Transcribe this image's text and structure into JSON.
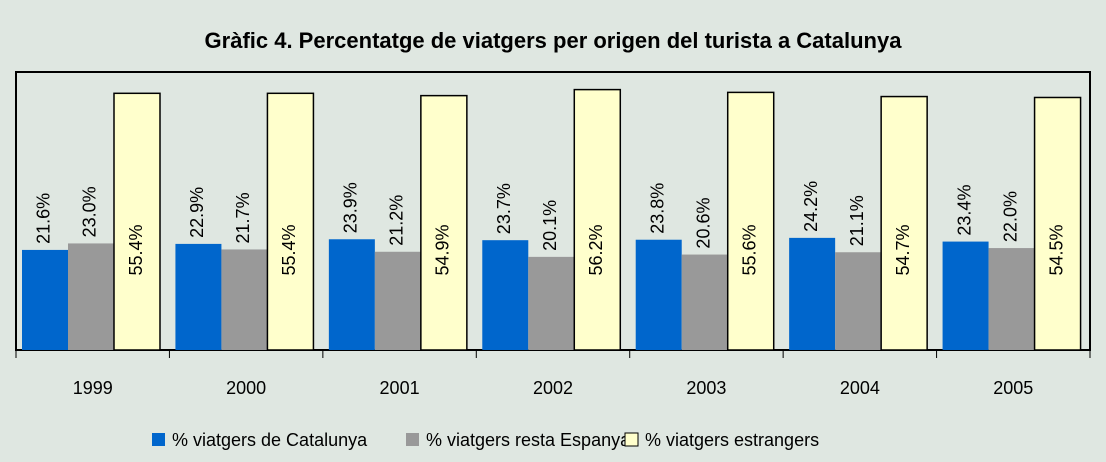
{
  "chart_data": {
    "type": "bar",
    "title": "Gràfic 4. Percentatge de viatgers per origen del turista a Catalunya",
    "categories": [
      "1999",
      "2000",
      "2001",
      "2002",
      "2003",
      "2004",
      "2005"
    ],
    "series": [
      {
        "name": "% viatgers de Catalunya",
        "color": "#0066cc",
        "values": [
          21.6,
          22.9,
          23.9,
          23.7,
          23.8,
          24.2,
          23.4
        ],
        "value_labels": [
          "21.6%",
          "22.9%",
          "23.9%",
          "23.7%",
          "23.8%",
          "24.2%",
          "23.4%"
        ]
      },
      {
        "name": "% viatgers resta Espanya",
        "color": "#999999",
        "values": [
          23.0,
          21.7,
          21.2,
          20.1,
          20.6,
          21.1,
          22.0
        ],
        "value_labels": [
          "23.0%",
          "21.7%",
          "21.2%",
          "20.1%",
          "20.6%",
          "21.1%",
          "22.0%"
        ]
      },
      {
        "name": "% viatgers estrangers",
        "color": "#ffffcc",
        "values": [
          55.4,
          55.4,
          54.9,
          56.2,
          55.6,
          54.7,
          54.5
        ],
        "value_labels": [
          "55.4%",
          "55.4%",
          "54.9%",
          "56.2%",
          "55.6%",
          "54.7%",
          "54.5%"
        ]
      }
    ],
    "ylim": [
      0,
      60
    ],
    "legend": "bottom"
  }
}
